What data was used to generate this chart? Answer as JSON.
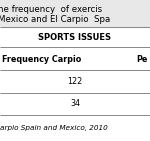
{
  "title_line1": "he frequency  of exercis",
  "title_line2": "Mexico and El Carpio  Spa",
  "section_header": "SPORTS ISSUES",
  "col1_header": "Frequency Carpio",
  "col2_header": "Pe",
  "row1_val": "122",
  "row2_val": "34",
  "footnote": "arpio Spain and Mexico, 2010",
  "bg_color": "#ffffff",
  "top_bg_color": "#e8e8e8",
  "text_color": "#000000",
  "line_color": "#888888",
  "title_fontsize": 6.2,
  "data_fontsize": 5.8,
  "section_fontsize": 6.0,
  "footnote_fontsize": 5.2
}
